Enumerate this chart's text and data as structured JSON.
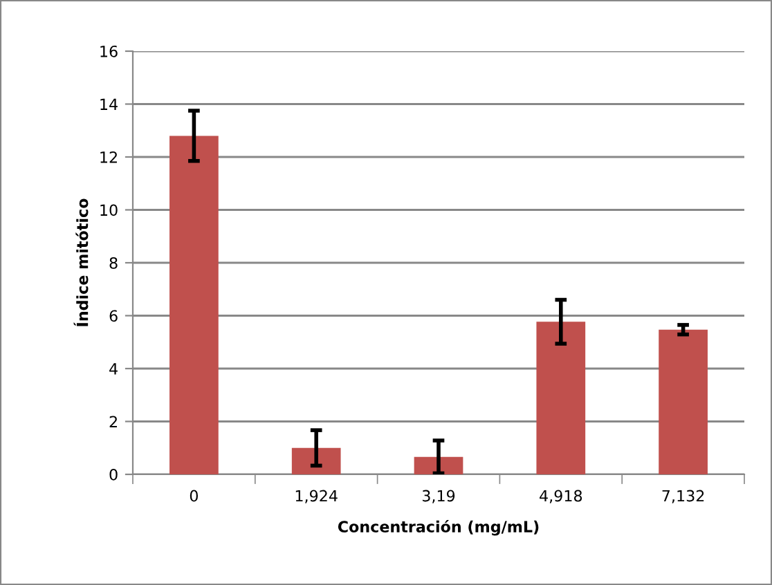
{
  "chart_data": {
    "type": "bar",
    "xlabel": "Concentración (mg/mL)",
    "ylabel": "Índice mitótico",
    "categories": [
      "0",
      "1,924",
      "3,19",
      "4,918",
      "7,132"
    ],
    "values": [
      12.8,
      1.0,
      0.66,
      5.77,
      5.47
    ],
    "errors": [
      0.95,
      0.67,
      0.62,
      0.83,
      0.18
    ],
    "color": "#c0504d",
    "ylim": [
      0,
      16
    ],
    "yticks": [
      0,
      2,
      4,
      6,
      8,
      10,
      12,
      14,
      16
    ],
    "grid": "y"
  }
}
